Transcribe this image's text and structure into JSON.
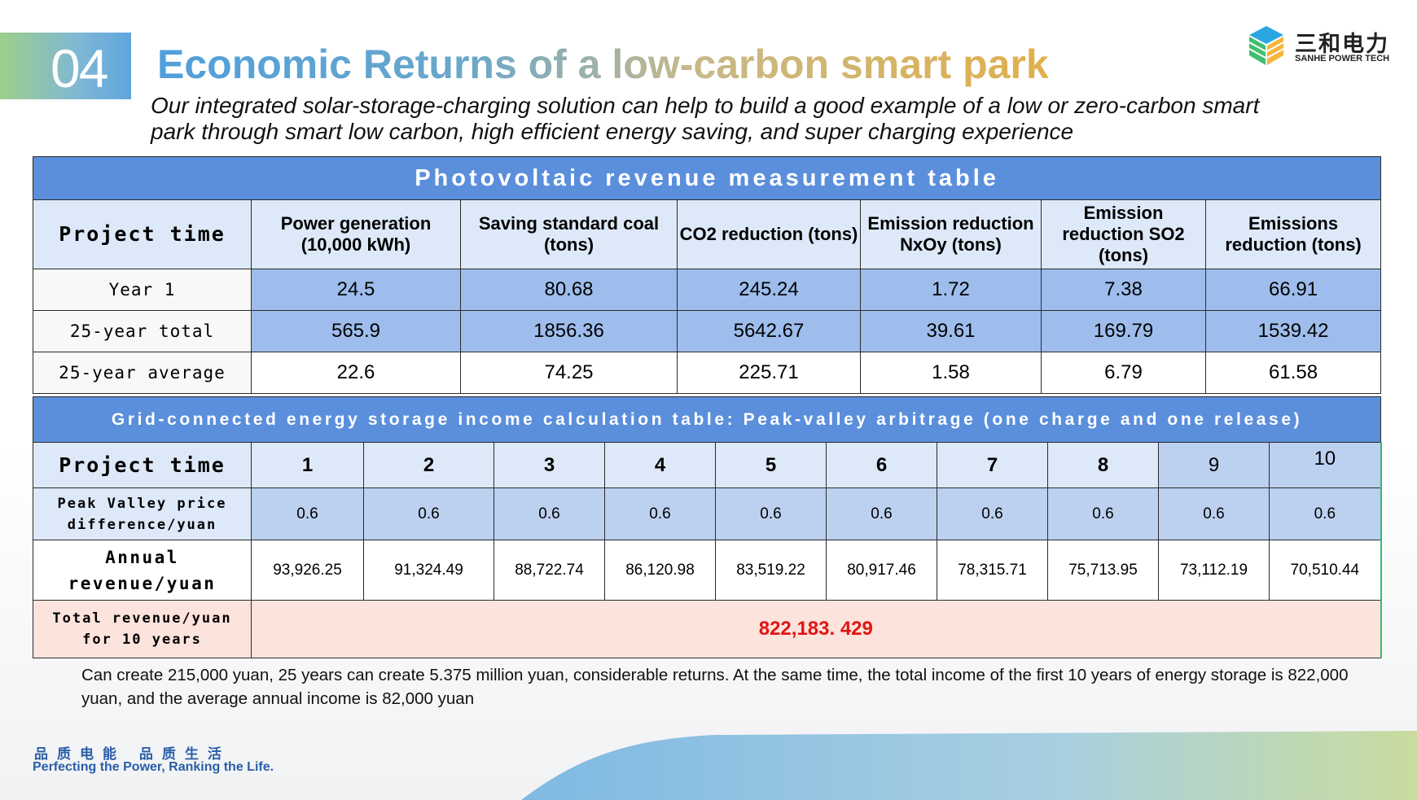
{
  "header": {
    "section_number": "04",
    "title": "Economic Returns of a low-carbon smart park",
    "subtitle": "Our integrated solar-storage-charging solution can help to build a good example of a low or zero-carbon smart park through smart low carbon, high efficient energy saving, and super charging experience"
  },
  "logo": {
    "cn": "三和电力",
    "en": "SANHE POWER TECH"
  },
  "pv_table": {
    "title": "Photovoltaic revenue measurement table",
    "columns": [
      "Project time",
      "Power generation (10,000 kWh)",
      "Saving standard coal (tons)",
      "CO2 reduction (tons)",
      "Emission reduction NxOy (tons)",
      "Emission reduction SO2 (tons)",
      "Emissions reduction (tons)"
    ],
    "rows": [
      {
        "label": "Year 1",
        "values": [
          "24.5",
          "80.68",
          "245.24",
          "1.72",
          "7.38",
          "66.91"
        ]
      },
      {
        "label": "25-year total",
        "values": [
          "565.9",
          "1856.36",
          "5642.67",
          "39.61",
          "169.79",
          "1539.42"
        ]
      },
      {
        "label": "25-year average",
        "values": [
          "22.6",
          "74.25",
          "225.71",
          "1.58",
          "6.79",
          "61.58"
        ]
      }
    ]
  },
  "storage_table": {
    "title": "Grid-connected energy storage income calculation table: Peak-valley arbitrage (one charge and one release)",
    "header_label": "Project time",
    "years": [
      "1",
      "2",
      "3",
      "4",
      "5",
      "6",
      "7",
      "8",
      "9",
      "10"
    ],
    "price_label": "Peak Valley price difference/yuan",
    "prices": [
      "0.6",
      "0.6",
      "0.6",
      "0.6",
      "0.6",
      "0.6",
      "0.6",
      "0.6",
      "0.6",
      "0.6"
    ],
    "revenue_label": "Annual revenue/yuan",
    "revenues": [
      "93,926.25",
      "91,324.49",
      "88,722.74",
      "86,120.98",
      "83,519.22",
      "80,917.46",
      "78,315.71",
      "75,713.95",
      "73,112.19",
      "70,510.44"
    ],
    "total_label": "Total revenue/yuan for 10 years",
    "total_value": "822,183. 429"
  },
  "note": "Can create 215,000 yuan, 25 years can create 5.375 million yuan, considerable returns. At the same time, the total income of the first 10 years of energy storage is 822,000 yuan, and the average annual income is 82,000 yuan",
  "footer": {
    "cn": "品质电能 品质生活",
    "en": "Perfecting the Power, Ranking the Life."
  },
  "colors": {
    "header_blue": "#5b8fdc",
    "cell_blue": "#9ebdec",
    "light_blue": "#dde9f8",
    "total_pink": "#fce3dc",
    "total_red": "#e41414",
    "footer_blue": "#2a5ea8"
  }
}
